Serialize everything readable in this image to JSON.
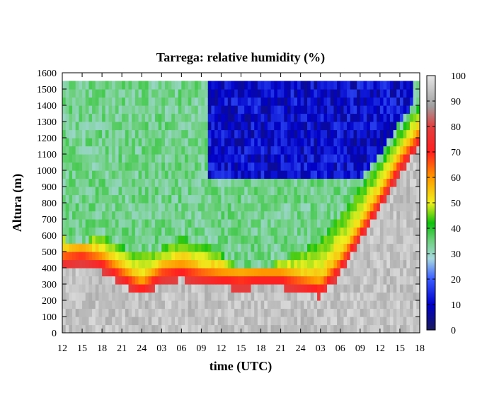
{
  "chart_data": {
    "type": "heatmap",
    "title": "Tarrega: relative humidity (%)",
    "xlabel": "time (UTC)",
    "ylabel": "Altura (m)",
    "x_tick_labels": [
      "12",
      "15",
      "18",
      "21",
      "24",
      "03",
      "06",
      "09",
      "12",
      "15",
      "18",
      "21",
      "24",
      "03",
      "06",
      "09",
      "12",
      "15",
      "18"
    ],
    "y_ticks": [
      0,
      100,
      200,
      300,
      400,
      500,
      600,
      700,
      800,
      900,
      1000,
      1100,
      1200,
      1300,
      1400,
      1500,
      1600
    ],
    "ylim": [
      0,
      1600
    ],
    "x_range_hours": [
      0,
      54
    ],
    "data_top_m": 1550,
    "colorbar": {
      "ticks": [
        0,
        10,
        20,
        30,
        40,
        50,
        60,
        70,
        80,
        90,
        100
      ],
      "range": [
        0,
        100
      ],
      "stops": [
        {
          "v": 0,
          "color": "#1a1a5a"
        },
        {
          "v": 10,
          "color": "#0000c8"
        },
        {
          "v": 20,
          "color": "#3a5cff"
        },
        {
          "v": 28,
          "color": "#a8d8e0"
        },
        {
          "v": 35,
          "color": "#6fd080"
        },
        {
          "v": 42,
          "color": "#10c010"
        },
        {
          "v": 50,
          "color": "#f0f020"
        },
        {
          "v": 60,
          "color": "#ff9900"
        },
        {
          "v": 70,
          "color": "#ff2020"
        },
        {
          "v": 80,
          "color": "#e04040"
        },
        {
          "v": 88,
          "color": "#a0a0a0"
        },
        {
          "v": 100,
          "color": "#e6e6e6"
        }
      ]
    },
    "boundary_layer_top_m": [
      {
        "t": 0,
        "h": 620
      },
      {
        "t": 2,
        "h": 500
      },
      {
        "t": 3.5,
        "h": 560
      },
      {
        "t": 5,
        "h": 620
      },
      {
        "t": 8,
        "h": 560
      },
      {
        "t": 11,
        "h": 500
      },
      {
        "t": 15,
        "h": 520
      },
      {
        "t": 18,
        "h": 590
      },
      {
        "t": 20,
        "h": 560
      },
      {
        "t": 23,
        "h": 520
      },
      {
        "t": 26,
        "h": 420
      },
      {
        "t": 29,
        "h": 350
      },
      {
        "t": 32,
        "h": 430
      },
      {
        "t": 36,
        "h": 500
      },
      {
        "t": 39,
        "h": 580
      },
      {
        "t": 42,
        "h": 720
      },
      {
        "t": 45,
        "h": 900
      },
      {
        "t": 48,
        "h": 1050
      },
      {
        "t": 51,
        "h": 1250
      },
      {
        "t": 54,
        "h": 1400
      }
    ],
    "saturated_layer_top_m": [
      {
        "t": 0,
        "h": 400
      },
      {
        "t": 3,
        "h": 420
      },
      {
        "t": 6,
        "h": 380
      },
      {
        "t": 9,
        "h": 300
      },
      {
        "t": 12,
        "h": 220
      },
      {
        "t": 15,
        "h": 310
      },
      {
        "t": 18,
        "h": 330
      },
      {
        "t": 21,
        "h": 300
      },
      {
        "t": 24,
        "h": 280
      },
      {
        "t": 27,
        "h": 270
      },
      {
        "t": 30,
        "h": 280
      },
      {
        "t": 33,
        "h": 280
      },
      {
        "t": 36,
        "h": 250
      },
      {
        "t": 39,
        "h": 220
      },
      {
        "t": 42,
        "h": 360
      },
      {
        "t": 45,
        "h": 560
      },
      {
        "t": 48,
        "h": 760
      },
      {
        "t": 51,
        "h": 980
      },
      {
        "t": 54,
        "h": 1150
      }
    ],
    "dry_layer": {
      "t_start": 22,
      "t_end": 53,
      "bottom_m": 900,
      "value": 5
    }
  }
}
